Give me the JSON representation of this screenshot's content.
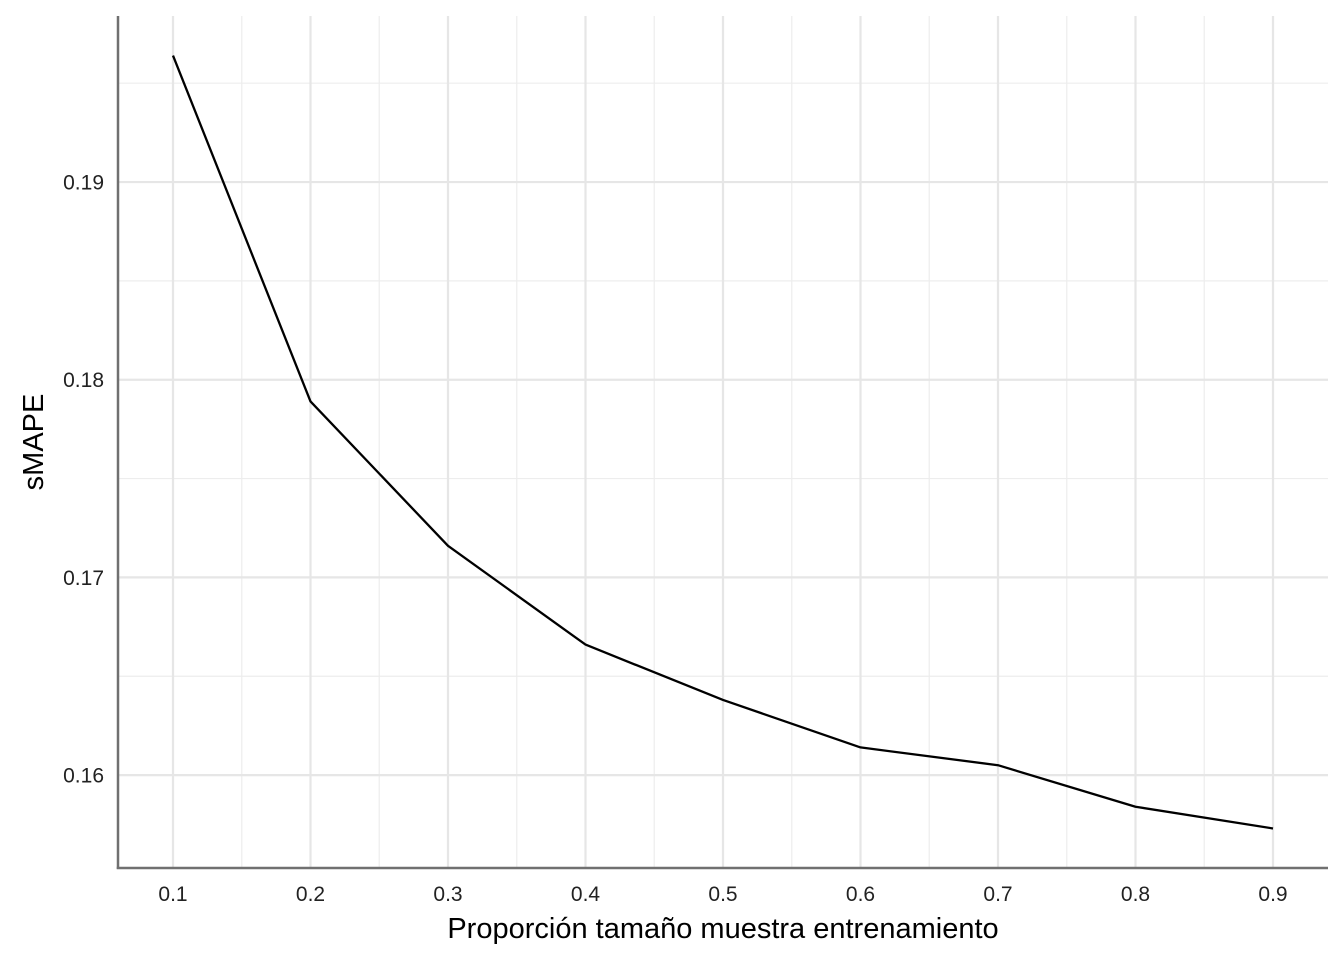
{
  "chart_data": {
    "type": "line",
    "title": "",
    "xlabel": "Proporción tamaño muestra entrenamiento",
    "ylabel": "sMAPE",
    "x": [
      0.1,
      0.2,
      0.3,
      0.4,
      0.5,
      0.6,
      0.7,
      0.8,
      0.9
    ],
    "series": [
      {
        "values": [
          0.1964,
          0.1789,
          0.1716,
          0.1666,
          0.1638,
          0.1614,
          0.1605,
          0.1584,
          0.1573
        ]
      }
    ],
    "x_ticks": [
      "0.1",
      "0.2",
      "0.3",
      "0.4",
      "0.5",
      "0.6",
      "0.7",
      "0.8",
      "0.9"
    ],
    "y_ticks": [
      "0.16",
      "0.17",
      "0.18",
      "0.19"
    ],
    "xlim": [
      0.06,
      0.94
    ],
    "ylim": [
      0.1553,
      0.1984
    ],
    "grid": true,
    "legend": "none",
    "line_color": "#000000"
  }
}
